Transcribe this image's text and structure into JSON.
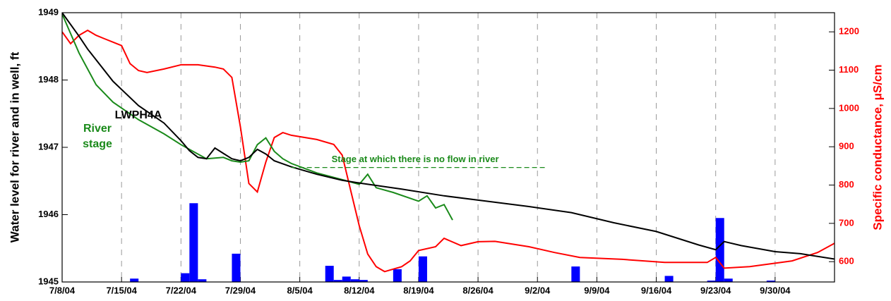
{
  "chart_data": {
    "type": "line",
    "y_label": "Water level for river and in well, ft",
    "y2_label": "Specific conductance, μS/cm",
    "xlim": [
      "7/8/04",
      "10/7/04"
    ],
    "xticks": [
      "7/8/04",
      "7/15/04",
      "7/22/04",
      "7/29/04",
      "8/5/04",
      "8/12/04",
      "8/19/04",
      "8/26/04",
      "9/2/04",
      "9/9/04",
      "9/16/04",
      "9/23/04",
      "9/30/04"
    ],
    "ylim": [
      1945,
      1949
    ],
    "yticks": [
      1945,
      1946,
      1947,
      1948,
      1949
    ],
    "y2lim": [
      547,
      1250
    ],
    "y2ticks": [
      600,
      700,
      800,
      900,
      1000,
      1100,
      1200
    ],
    "grid": true,
    "series": [
      {
        "name": "LWPH4A",
        "color": "#000000",
        "axis": "y",
        "x": [
          "7/8/04",
          "7/10/04",
          "7/11/04",
          "7/14/04",
          "7/17/04",
          "7/20/04",
          "7/22/04",
          "7/23/04",
          "7/24/04",
          "7/25/04",
          "7/26/04",
          "7/27/04",
          "7/28/04",
          "7/29/04",
          "7/30/04",
          "7/31/04",
          "8/1/04",
          "8/2/04",
          "8/4/04",
          "8/7/04",
          "8/10/04",
          "8/12/04",
          "8/17/04",
          "8/22/04",
          "8/27/04",
          "9/1/04",
          "9/6/04",
          "9/11/04",
          "9/16/04",
          "9/21/04",
          "9/23/04",
          "9/24/04",
          "9/26/04",
          "9/30/04",
          "10/3/04",
          "10/7/04"
        ],
        "values": [
          1949.0,
          1948.65,
          1948.46,
          1947.98,
          1947.62,
          1947.36,
          1947.1,
          1946.95,
          1946.85,
          1946.83,
          1946.99,
          1946.91,
          1946.83,
          1946.8,
          1946.85,
          1946.97,
          1946.9,
          1946.8,
          1946.71,
          1946.6,
          1946.51,
          1946.47,
          1946.38,
          1946.28,
          1946.2,
          1946.12,
          1946.03,
          1945.88,
          1945.75,
          1945.55,
          1945.48,
          1945.6,
          1945.54,
          1945.45,
          1945.42,
          1945.34
        ]
      },
      {
        "name": "River stage",
        "color": "#1a8a1a",
        "axis": "y",
        "x": [
          "7/8/04",
          "7/10/04",
          "7/12/04",
          "7/14/04",
          "7/17/04",
          "7/20/04",
          "7/22/04",
          "7/25/04",
          "7/27/04",
          "7/28/04",
          "7/29/04",
          "7/30/04",
          "7/31/04",
          "8/1/04",
          "8/2/04",
          "8/3/04",
          "8/4/04",
          "8/7/04",
          "8/10/04",
          "8/12/04",
          "8/13/04",
          "8/14/04",
          "8/16/04",
          "8/19/04",
          "8/20/04",
          "8/21/04",
          "8/22/04",
          "8/23/04"
        ],
        "values": [
          1948.98,
          1948.4,
          1947.93,
          1947.67,
          1947.41,
          1947.2,
          1947.04,
          1946.83,
          1946.85,
          1946.8,
          1946.78,
          1946.8,
          1947.04,
          1947.14,
          1946.94,
          1946.83,
          1946.76,
          1946.62,
          1946.52,
          1946.45,
          1946.6,
          1946.4,
          1946.33,
          1946.2,
          1946.28,
          1946.1,
          1946.15,
          1945.92
        ]
      },
      {
        "color": "#ff0000",
        "axis": "y2",
        "x": [
          "7/8/04",
          "7/9/04",
          "7/10/04",
          "7/11/04",
          "7/12/04",
          "7/13/04",
          "7/14/04",
          "7/15/04",
          "7/16/04",
          "7/17/04",
          "7/18/04",
          "7/20/04",
          "7/22/04",
          "7/24/04",
          "7/26/04",
          "7/27/04",
          "7/28/04",
          "7/29/04",
          "7/30/04",
          "7/31/04",
          "8/1/04",
          "8/2/04",
          "8/3/04",
          "8/4/04",
          "8/7/04",
          "8/9/04",
          "8/10/04",
          "8/11/04",
          "8/12/04",
          "8/13/04",
          "8/14/04",
          "8/15/04",
          "8/17/04",
          "8/18/04",
          "8/19/04",
          "8/21/04",
          "8/22/04",
          "8/24/04",
          "8/26/04",
          "8/28/04",
          "9/1/04",
          "9/4/04",
          "9/7/04",
          "9/12/04",
          "9/17/04",
          "9/22/04",
          "9/23/04",
          "9/24/04",
          "9/27/04",
          "10/2/04",
          "10/5/04",
          "10/7/04"
        ],
        "values": [
          1200,
          1169,
          1191,
          1204,
          1191,
          1182,
          1173,
          1164,
          1117,
          1099,
          1094,
          1103,
          1114,
          1114,
          1108,
          1103,
          1081,
          952,
          804,
          782,
          860,
          924,
          937,
          930,
          919,
          906,
          878,
          786,
          694,
          620,
          587,
          574,
          587,
          602,
          629,
          639,
          661,
          642,
          652,
          653,
          639,
          624,
          611,
          606,
          598,
          598,
          611,
          583,
          587,
          602,
          624,
          648
        ]
      },
      {
        "type": "bar",
        "color": "#0000ff",
        "axis": "y",
        "x": [
          "7/16/04",
          "7/22/04",
          "7/23/04",
          "7/24/04",
          "7/28/04",
          "8/8/04",
          "8/9/04",
          "8/10/04",
          "8/11/04",
          "8/12/04",
          "8/16/04",
          "8/19/04",
          "9/6/04",
          "9/17/04",
          "9/22/04",
          "9/23/04",
          "9/24/04",
          "9/29/04"
        ],
        "values": [
          1945.05,
          1945.13,
          1946.17,
          1945.04,
          1945.42,
          1945.24,
          1945.03,
          1945.08,
          1945.04,
          1945.03,
          1945.19,
          1945.38,
          1945.23,
          1945.09,
          1945.02,
          1945.95,
          1945.05,
          1945.02
        ]
      }
    ],
    "no_flow_line": {
      "label": "Stage at which there is no flow in river",
      "value": 1946.7,
      "x": [
        "8/4/04",
        "9/3/04"
      ],
      "color": "#1a8a1a"
    }
  }
}
